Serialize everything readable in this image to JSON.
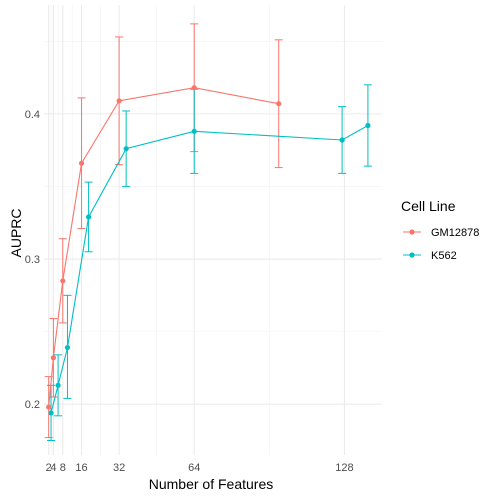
{
  "chart_data": {
    "type": "line",
    "title": "",
    "xlabel": "Number of Features",
    "ylabel": "AUPRC",
    "x_ticks": [
      2,
      4,
      8,
      16,
      32,
      64,
      128
    ],
    "x_tick_labels": [
      "2",
      "4",
      "8",
      "16",
      "32",
      "64",
      "128"
    ],
    "y_ticks": [
      0.2,
      0.3,
      0.4
    ],
    "y_tick_labels": [
      "0.2",
      "0.3",
      "0.4"
    ],
    "xlim": [
      0,
      144
    ],
    "ylim": [
      0.165,
      0.475
    ],
    "grid": true,
    "legend": {
      "title": "Cell Line",
      "position": "right"
    },
    "series": [
      {
        "name": "GM12878",
        "color": "#F8766D",
        "points": [
          {
            "x": 2,
            "y": 0.198,
            "lo": 0.177,
            "hi": 0.219
          },
          {
            "x": 4,
            "y": 0.232,
            "lo": 0.205,
            "hi": 0.259
          },
          {
            "x": 8,
            "y": 0.285,
            "lo": 0.256,
            "hi": 0.314
          },
          {
            "x": 16,
            "y": 0.366,
            "lo": 0.321,
            "hi": 0.411
          },
          {
            "x": 32,
            "y": 0.409,
            "lo": 0.365,
            "hi": 0.453
          },
          {
            "x": 64,
            "y": 0.418,
            "lo": 0.374,
            "hi": 0.462
          },
          {
            "x": 100,
            "y": 0.407,
            "lo": 0.363,
            "hi": 0.451
          }
        ]
      },
      {
        "name": "K562",
        "color": "#00BFC4",
        "points": [
          {
            "x": 3,
            "y": 0.194,
            "lo": 0.175,
            "hi": 0.213
          },
          {
            "x": 6,
            "y": 0.213,
            "lo": 0.192,
            "hi": 0.234
          },
          {
            "x": 10,
            "y": 0.239,
            "lo": 0.204,
            "hi": 0.275
          },
          {
            "x": 19,
            "y": 0.329,
            "lo": 0.305,
            "hi": 0.353
          },
          {
            "x": 35,
            "y": 0.376,
            "lo": 0.35,
            "hi": 0.402
          },
          {
            "x": 64,
            "y": 0.388,
            "lo": 0.359,
            "hi": 0.417
          },
          {
            "x": 127,
            "y": 0.382,
            "lo": 0.359,
            "hi": 0.405
          },
          {
            "x": 138,
            "y": 0.392,
            "lo": 0.364,
            "hi": 0.42
          }
        ]
      }
    ]
  }
}
